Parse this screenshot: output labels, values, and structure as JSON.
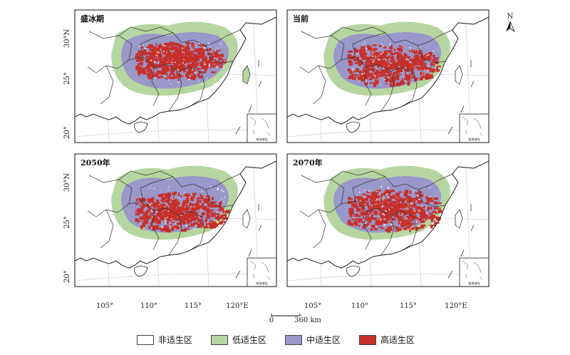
{
  "panels": [
    {
      "title": "盛冰期",
      "variant": 0
    },
    {
      "title": "当前",
      "variant": 1
    },
    {
      "title": "2050年",
      "variant": 2
    },
    {
      "title": "2070年",
      "variant": 3
    }
  ],
  "lat_labels": [
    "30°N",
    "25°",
    "20°"
  ],
  "lon_labels": [
    "105°",
    "110°",
    "115°",
    "120°E"
  ],
  "inset_label": "南海诸岛",
  "scalebar": {
    "start": "0",
    "end": "360 km"
  },
  "north_label": "N",
  "legend": [
    {
      "label": "非适生区",
      "color": "#ffffff"
    },
    {
      "label": "低适生区",
      "color": "#b5d6a0"
    },
    {
      "label": "中适生区",
      "color": "#9a97c9"
    },
    {
      "label": "高适生区",
      "color": "#c7302a"
    }
  ]
}
